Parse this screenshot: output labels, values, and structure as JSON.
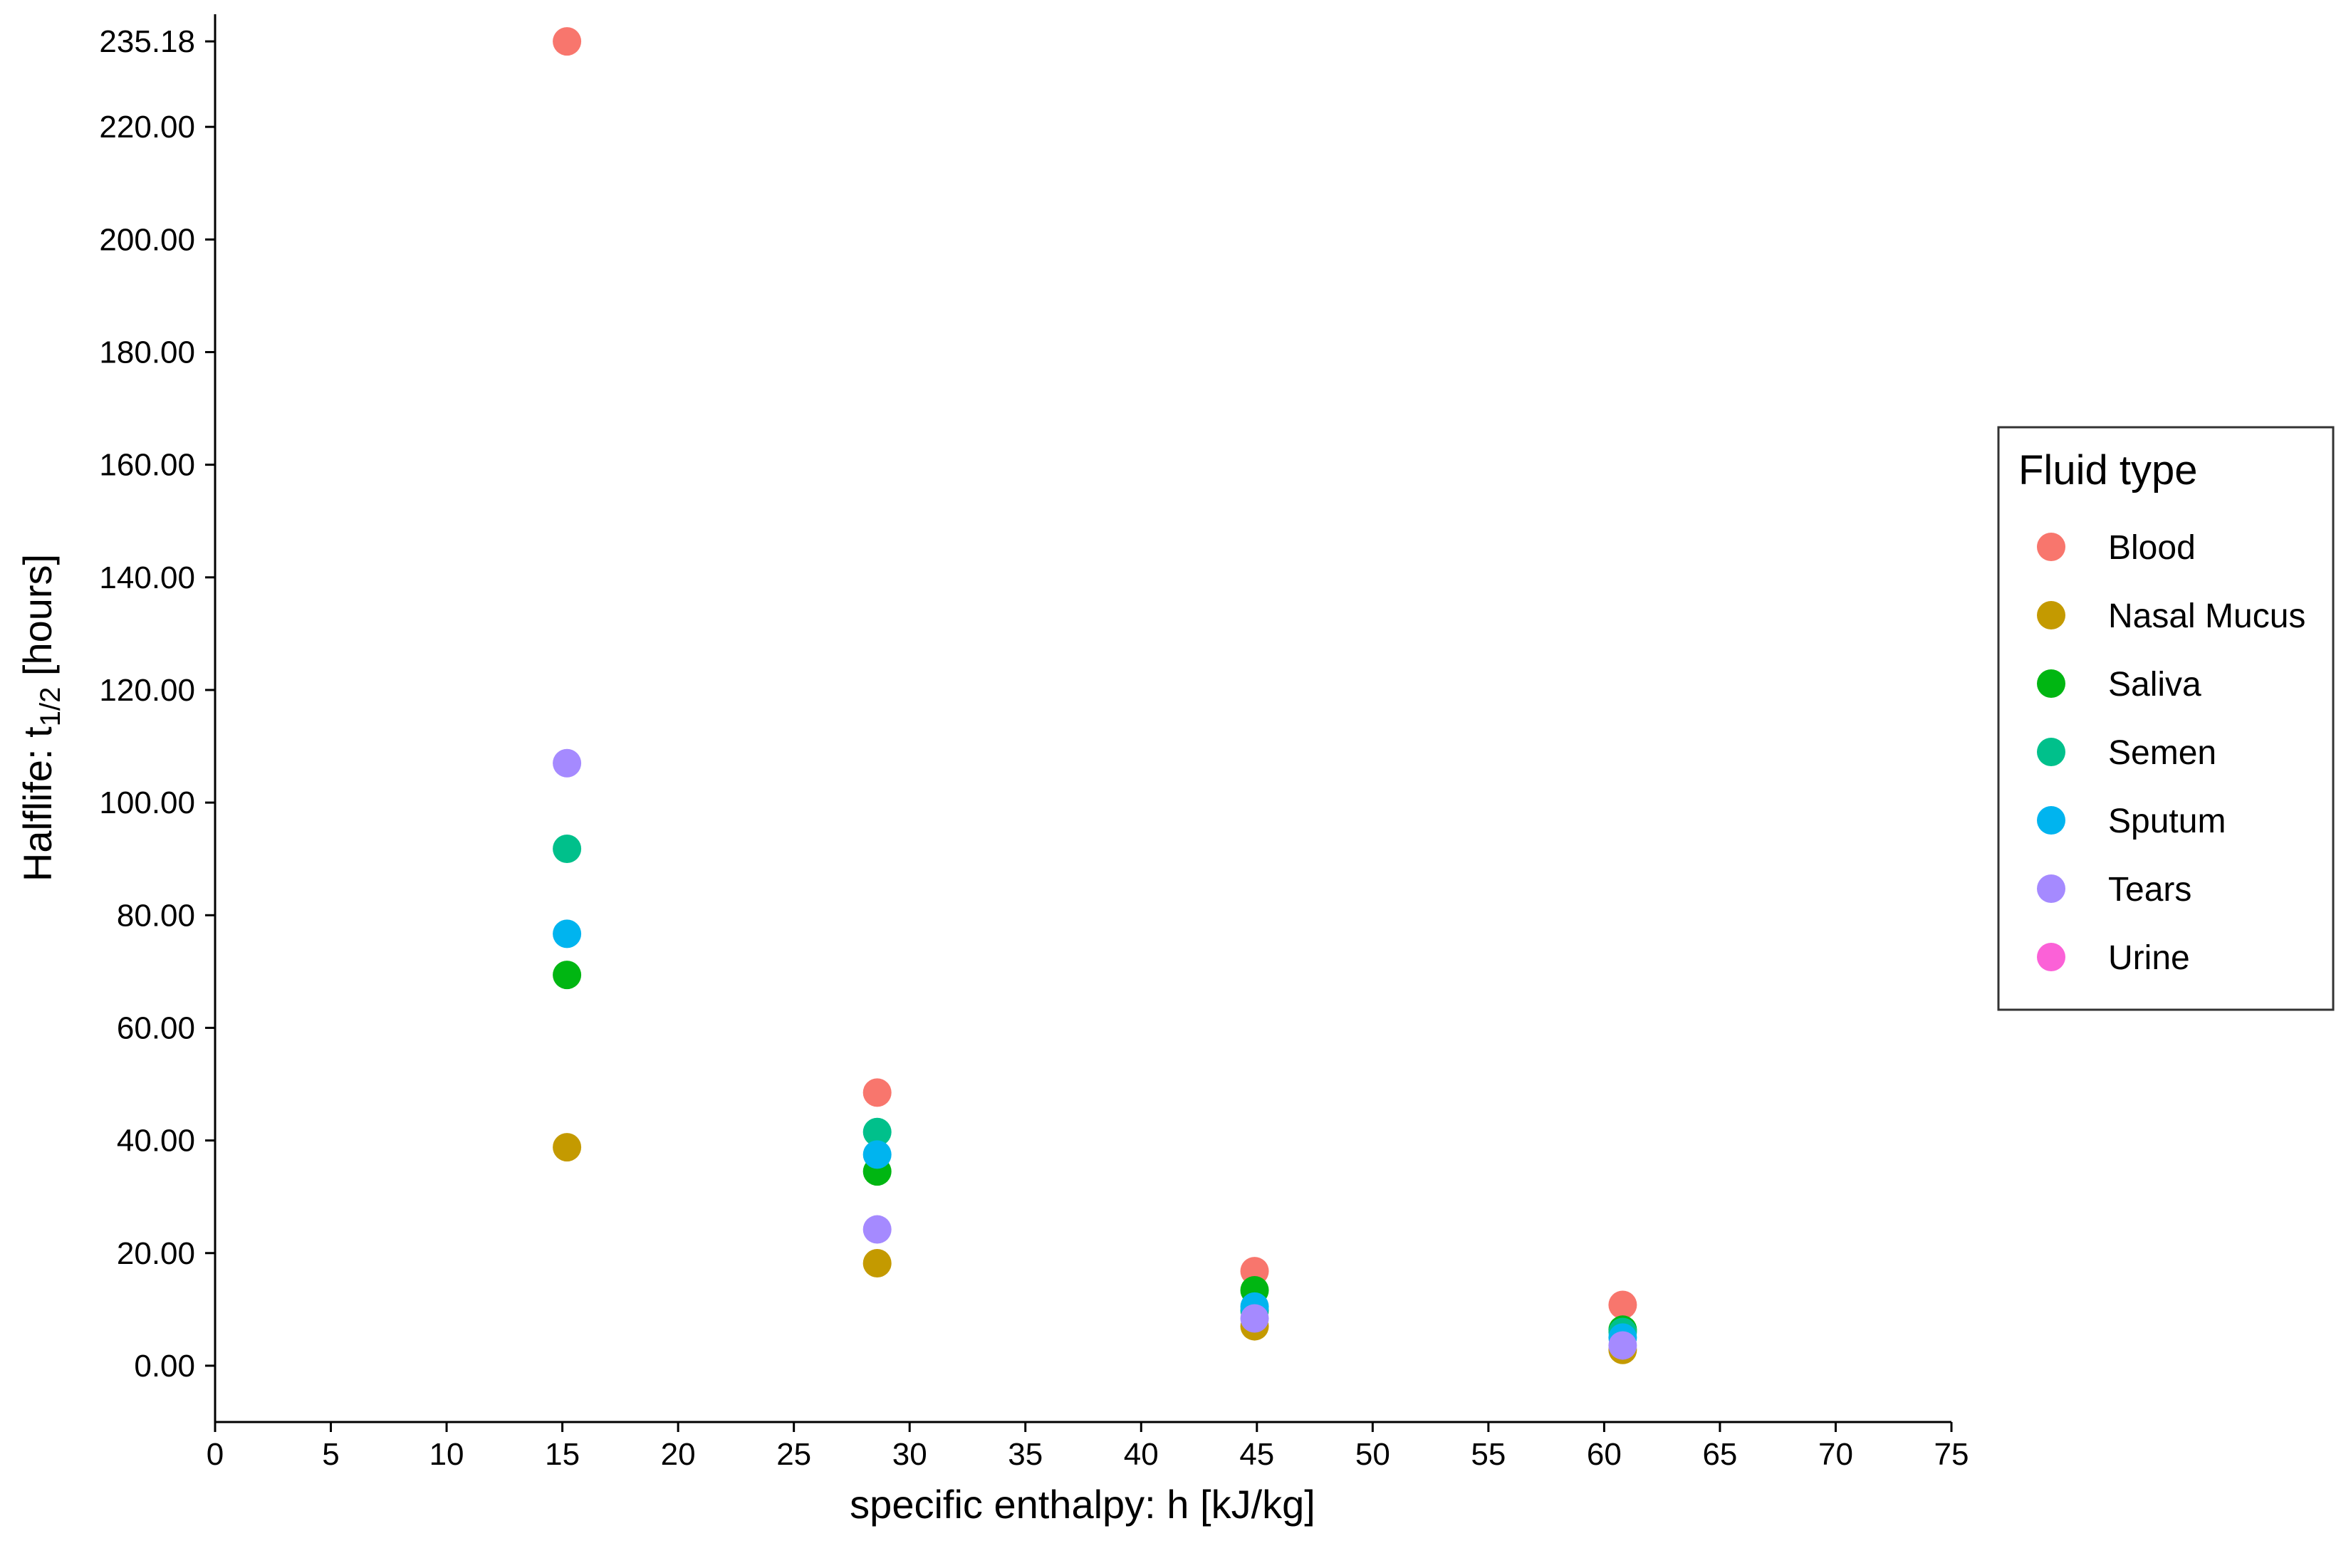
{
  "chart_data": {
    "type": "scatter",
    "title": "",
    "xlabel": "specific enthalpy: h [kJ/kg]",
    "ylabel": {
      "main": "Halflife:  t",
      "subscript": "1/2",
      "unit": " [hours]"
    },
    "xlim": [
      0,
      75
    ],
    "ylim": [
      -10,
      240
    ],
    "x_ticks": [
      "0",
      "5",
      "10",
      "15",
      "20",
      "25",
      "30",
      "35",
      "40",
      "45",
      "50",
      "55",
      "60",
      "65",
      "70",
      "75"
    ],
    "y_ticks": [
      "0.00",
      "20.00",
      "40.00",
      "60.00",
      "80.00",
      "100.00",
      "120.00",
      "140.00",
      "160.00",
      "180.00",
      "200.00",
      "220.00",
      "235.18"
    ],
    "grid": false,
    "legend": {
      "title": "Fluid type",
      "position": "right"
    },
    "series": [
      {
        "name": "Blood",
        "color": "#F8766D",
        "points": [
          [
            15.2,
            235.18
          ],
          [
            28.6,
            48.5
          ],
          [
            44.9,
            16.8
          ],
          [
            60.8,
            10.8
          ]
        ]
      },
      {
        "name": "Nasal Mucus",
        "color": "#C49A00",
        "points": [
          [
            15.2,
            38.8
          ],
          [
            28.6,
            18.2
          ],
          [
            44.9,
            7.0
          ],
          [
            60.8,
            2.8
          ]
        ]
      },
      {
        "name": "Saliva",
        "color": "#00B612",
        "points": [
          [
            15.2,
            69.4
          ],
          [
            28.6,
            34.5
          ],
          [
            44.9,
            13.4
          ],
          [
            60.8,
            6.4
          ]
        ]
      },
      {
        "name": "Semen",
        "color": "#00C08B",
        "points": [
          [
            15.2,
            91.8
          ],
          [
            28.6,
            41.5
          ],
          [
            44.9,
            9.8
          ],
          [
            60.8,
            6.0
          ]
        ]
      },
      {
        "name": "Sputum",
        "color": "#00B4EF",
        "points": [
          [
            15.2,
            76.7
          ],
          [
            28.6,
            37.5
          ],
          [
            44.9,
            10.5
          ],
          [
            60.8,
            5.0
          ]
        ]
      },
      {
        "name": "Tears",
        "color": "#A58AFF",
        "points": [
          [
            15.2,
            107.0
          ],
          [
            28.6,
            24.2
          ],
          [
            44.9,
            8.4
          ],
          [
            60.8,
            3.6
          ]
        ]
      },
      {
        "name": "Urine",
        "color": "#FB61D7",
        "points": []
      }
    ]
  }
}
